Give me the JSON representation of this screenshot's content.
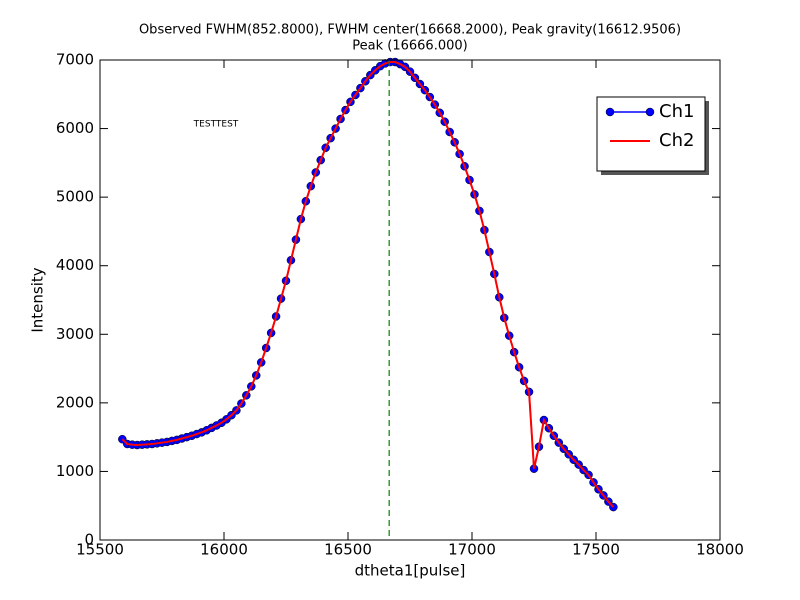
{
  "chart_data": {
    "type": "line",
    "title": "Observed FWHM(852.8000), FWHM center(16668.2000), Peak gravity(16612.9506)",
    "subtitle": "Peak (16666.000)",
    "x_label": "dtheta1[pulse]",
    "y_label": "Intensity",
    "annotations": [
      "TESTTEST"
    ],
    "x": [
      15590,
      15610,
      15630,
      15650,
      15670,
      15690,
      15710,
      15730,
      15750,
      15770,
      15790,
      15810,
      15830,
      15850,
      15870,
      15890,
      15910,
      15930,
      15950,
      15970,
      15990,
      16010,
      16030,
      16050,
      16070,
      16090,
      16110,
      16130,
      16150,
      16170,
      16190,
      16210,
      16230,
      16250,
      16270,
      16290,
      16310,
      16330,
      16350,
      16370,
      16390,
      16410,
      16430,
      16450,
      16470,
      16490,
      16510,
      16530,
      16550,
      16570,
      16590,
      16610,
      16630,
      16650,
      16670,
      16690,
      16710,
      16730,
      16750,
      16770,
      16790,
      16810,
      16830,
      16850,
      16870,
      16890,
      16910,
      16930,
      16950,
      16970,
      16990,
      17010,
      17030,
      17050,
      17070,
      17090,
      17110,
      17130,
      17150,
      17170,
      17190,
      17210,
      17230,
      17250,
      17270,
      17290,
      17310,
      17330,
      17350,
      17370,
      17390,
      17410,
      17430,
      17450,
      17470,
      17490,
      17510,
      17530,
      17550,
      17570
    ],
    "series": [
      {
        "name": "Ch1",
        "color": "#0000ff",
        "marker": true,
        "values": [
          1470,
          1400,
          1390,
          1385,
          1390,
          1395,
          1400,
          1410,
          1420,
          1430,
          1445,
          1460,
          1480,
          1500,
          1520,
          1545,
          1570,
          1600,
          1635,
          1670,
          1710,
          1760,
          1820,
          1890,
          1990,
          2110,
          2240,
          2400,
          2590,
          2800,
          3020,
          3260,
          3520,
          3780,
          4080,
          4380,
          4680,
          4940,
          5160,
          5360,
          5540,
          5720,
          5860,
          6000,
          6140,
          6270,
          6390,
          6490,
          6590,
          6690,
          6780,
          6850,
          6910,
          6950,
          6970,
          6970,
          6940,
          6900,
          6830,
          6740,
          6650,
          6560,
          6460,
          6350,
          6230,
          6100,
          5950,
          5800,
          5630,
          5450,
          5250,
          5040,
          4800,
          4520,
          4200,
          3880,
          3540,
          3240,
          2980,
          2740,
          2520,
          2320,
          2160,
          1040,
          1360,
          1750,
          1630,
          1520,
          1420,
          1330,
          1250,
          1170,
          1100,
          1020,
          950,
          840,
          740,
          650,
          560,
          480
        ]
      },
      {
        "name": "Ch2",
        "color": "#ff0000",
        "marker": false,
        "values": [
          1470,
          1400,
          1390,
          1385,
          1390,
          1395,
          1400,
          1410,
          1420,
          1430,
          1445,
          1460,
          1480,
          1500,
          1520,
          1545,
          1570,
          1600,
          1635,
          1670,
          1710,
          1760,
          1820,
          1890,
          1990,
          2110,
          2240,
          2400,
          2590,
          2800,
          3020,
          3260,
          3520,
          3780,
          4080,
          4380,
          4680,
          4940,
          5160,
          5360,
          5540,
          5720,
          5860,
          6000,
          6140,
          6270,
          6390,
          6490,
          6590,
          6690,
          6780,
          6850,
          6910,
          6950,
          6970,
          6970,
          6940,
          6900,
          6830,
          6740,
          6650,
          6560,
          6460,
          6350,
          6230,
          6100,
          5950,
          5800,
          5630,
          5450,
          5250,
          5040,
          4800,
          4520,
          4200,
          3880,
          3540,
          3240,
          2980,
          2740,
          2520,
          2320,
          2160,
          1040,
          1360,
          1750,
          1630,
          1520,
          1420,
          1330,
          1250,
          1170,
          1100,
          1020,
          950,
          840,
          740,
          650,
          560,
          480
        ]
      }
    ],
    "vlines": [
      {
        "x": 16666,
        "color": "#008000"
      }
    ],
    "xlim": [
      15500,
      18000
    ],
    "xticks": [
      15500,
      16000,
      16500,
      17000,
      17500,
      18000
    ],
    "ylim": [
      0,
      7000
    ],
    "yticks": [
      0,
      1000,
      2000,
      3000,
      4000,
      5000,
      6000,
      7000
    ],
    "grid": false,
    "legend": "upper-right"
  }
}
